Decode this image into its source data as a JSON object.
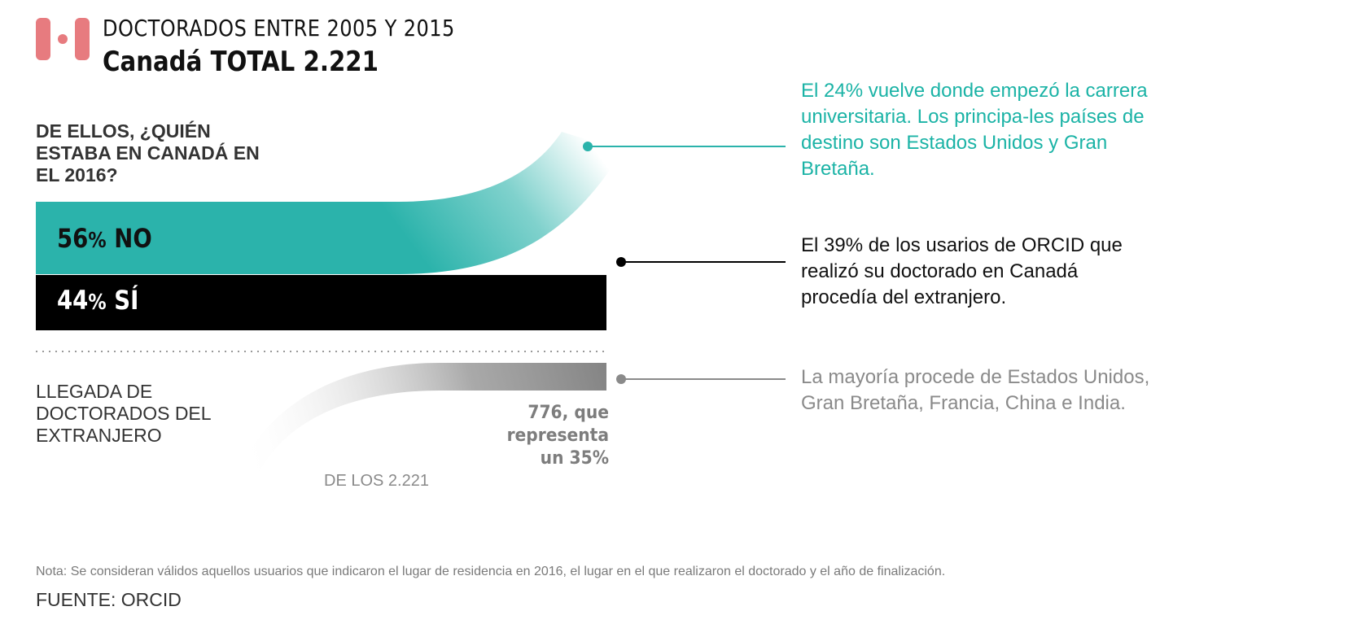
{
  "header": {
    "title": "DOCTORADOS ENTRE 2005 Y 2015",
    "subtitle": "Canadá TOTAL 2.221"
  },
  "question": "DE ELLOS, ¿QUIÉN ESTABA EN CANADÁ EN EL 2016?",
  "bars": {
    "no": {
      "value": "56",
      "unit": "%",
      "word": "NO"
    },
    "si": {
      "value": "44",
      "unit": "%",
      "word": "SÍ"
    }
  },
  "arrivals": {
    "label": "LLEGADA DE DOCTORADOS DEL EXTRANJERO",
    "count_note": "776, que representa un 35%",
    "of_total": "DE LOS 2.221"
  },
  "notes": {
    "teal": "El 24% vuelve donde empezó la carrera universitaria. Los principa-les países de destino son Estados Unidos y Gran Bretaña.",
    "black": "El 39% de los usarios de ORCID que realizó su doctorado en Canadá procedía del extranjero.",
    "gray": "La mayoría procede de Estados Unidos, Gran Bretaña, Francia, China e India."
  },
  "footer": {
    "footnote": "Nota: Se consideran válidos aquellos usuarios  que indicaron el lugar de residencia en 2016, el lugar en el que realizaron el doctorado y el año de finalización.",
    "source": "FUENTE: ORCID"
  },
  "colors": {
    "teal": "#2bb3ab",
    "black": "#000000",
    "gray": "#8a8a8a",
    "flag_red": "#e77b7f"
  },
  "chart_data": {
    "type": "bar",
    "title": "DOCTORADOS ENTRE 2005 Y 2015",
    "subtitle": "Canadá TOTAL 2.221",
    "total": 2221,
    "categories": [
      "NO",
      "SÍ"
    ],
    "values": [
      56,
      44
    ],
    "unit": "%",
    "inflow": {
      "count": 776,
      "percent": 35,
      "of_total": 2221
    },
    "annotations": [
      {
        "percent": 24,
        "color": "teal"
      },
      {
        "percent": 39,
        "color": "black"
      }
    ]
  }
}
